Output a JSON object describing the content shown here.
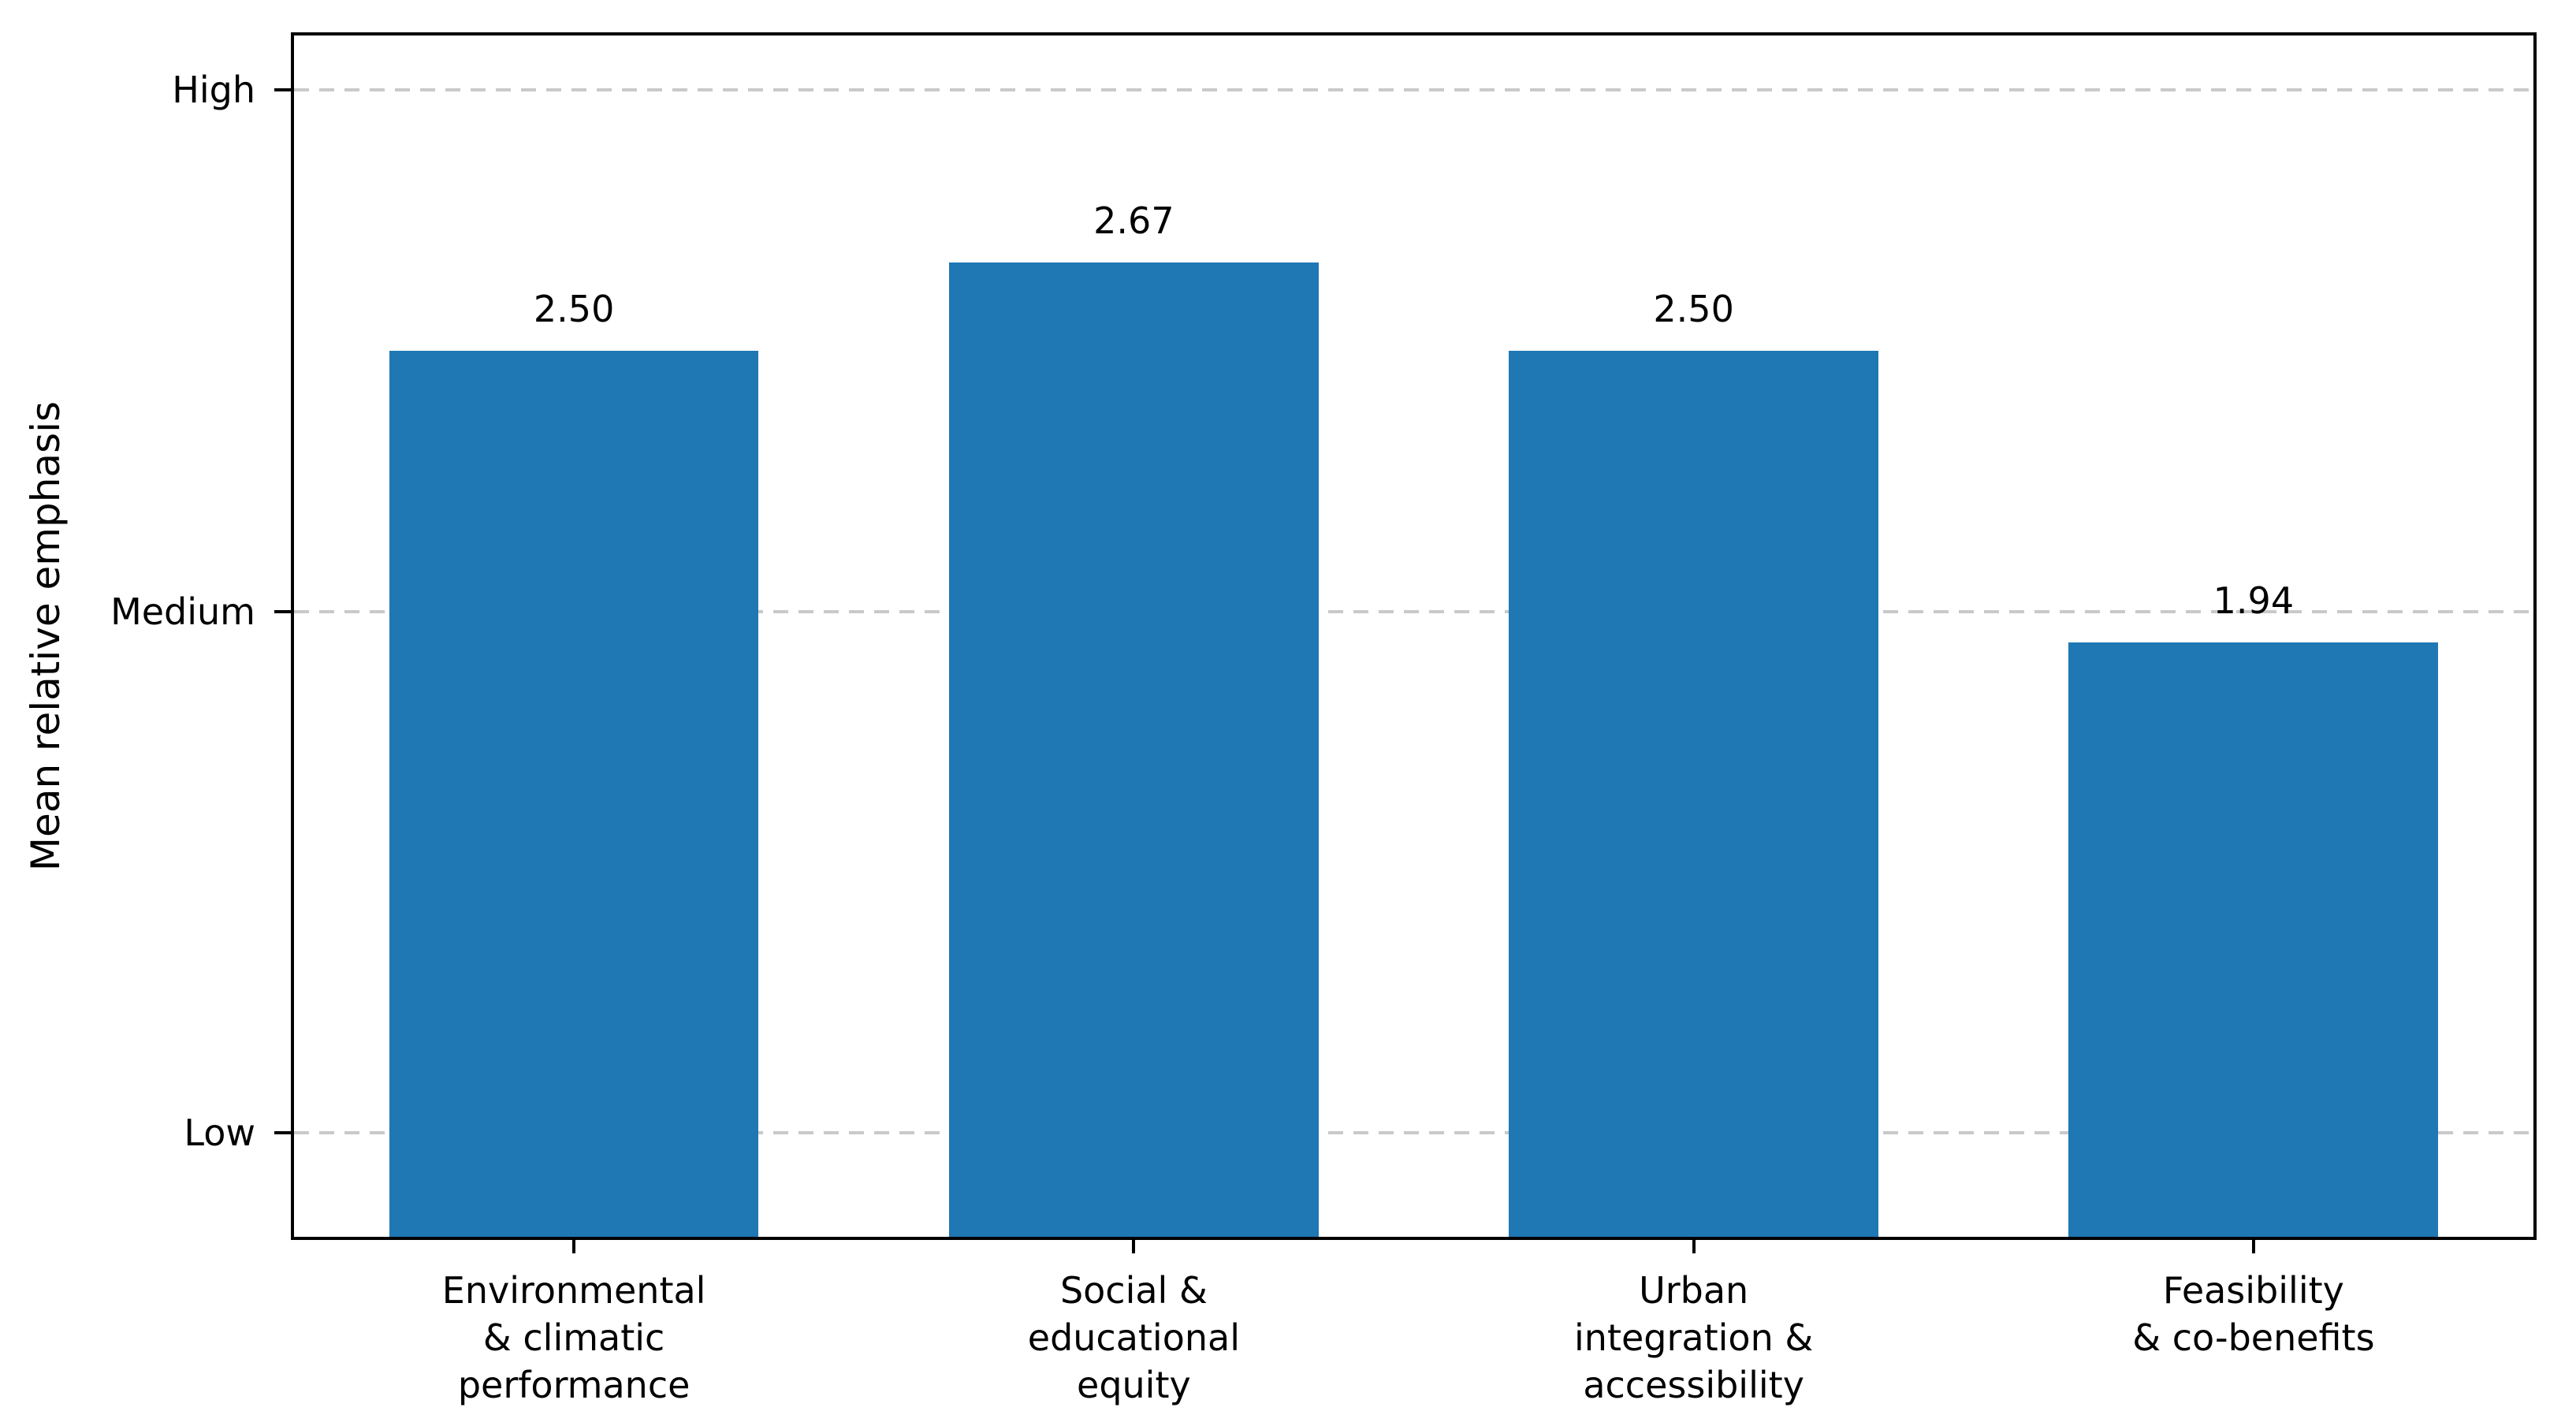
{
  "chart_data": {
    "type": "bar",
    "categories": [
      "Environmental\n& climatic\nperformance",
      "Social &\neducational\nequity",
      "Urban\nintegration &\naccessibility",
      "Feasibility\n& co-benefits"
    ],
    "values": [
      2.5,
      2.67,
      2.5,
      1.94
    ],
    "value_labels": [
      "2.50",
      "2.67",
      "2.50",
      "1.94"
    ],
    "title": "",
    "xlabel": "",
    "ylabel": "Mean relative emphasis",
    "yticks": [
      {
        "value": 3,
        "label": "High"
      },
      {
        "value": 2,
        "label": "Medium"
      },
      {
        "value": 1,
        "label": "Low"
      }
    ],
    "ylim": [
      0.8,
      3.105
    ],
    "grid": "horizontal dashed at each y tick",
    "legend": null,
    "bar_color": "#1f77b4",
    "grid_color": "#c9c9c9",
    "axis_color": "#000000",
    "text_color": "#000000"
  }
}
